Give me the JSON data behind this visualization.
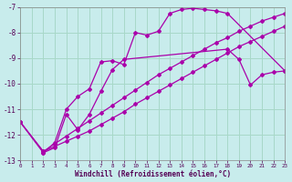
{
  "xlabel": "Windchill (Refroidissement éolien,°C)",
  "background_color": "#c8ecec",
  "grid_color": "#a8d8c8",
  "line_color": "#aa00aa",
  "xmin": 0,
  "xmax": 23,
  "ymin": -13,
  "ymax": -7,
  "line1_x": [
    0,
    2,
    3,
    4,
    5,
    6,
    7,
    8,
    9,
    10,
    11,
    12,
    13,
    14,
    15,
    16,
    17,
    18,
    23
  ],
  "line1_y": [
    -11.5,
    -12.7,
    -12.3,
    -11.0,
    -10.5,
    -10.2,
    -9.15,
    -9.1,
    -9.25,
    -8.0,
    -8.1,
    -7.95,
    -7.25,
    -7.1,
    -7.05,
    -7.1,
    -7.15,
    -7.25,
    -9.5
  ],
  "line2_x": [
    2,
    3,
    4,
    5,
    6,
    7,
    8,
    9,
    18,
    19,
    20,
    21,
    22,
    23
  ],
  "line2_y": [
    -12.7,
    -12.5,
    -11.2,
    -11.8,
    -11.2,
    -10.3,
    -9.45,
    -9.05,
    -8.65,
    -9.05,
    -10.05,
    -9.65,
    -9.55,
    -9.5
  ],
  "line3_x": [
    0,
    2,
    3,
    4,
    5,
    6,
    7,
    8,
    9,
    10,
    11,
    12,
    13,
    14,
    15,
    16,
    17,
    18,
    19,
    20,
    21,
    22,
    23
  ],
  "line3_y": [
    -11.5,
    -12.65,
    -12.35,
    -12.05,
    -11.75,
    -11.45,
    -11.15,
    -10.85,
    -10.55,
    -10.25,
    -9.95,
    -9.65,
    -9.4,
    -9.15,
    -8.9,
    -8.65,
    -8.4,
    -8.2,
    -7.95,
    -7.75,
    -7.55,
    -7.4,
    -7.25
  ],
  "line4_x": [
    0,
    2,
    3,
    4,
    5,
    6,
    7,
    8,
    9,
    10,
    11,
    12,
    13,
    14,
    15,
    16,
    17,
    18,
    19,
    20,
    21,
    22,
    23
  ],
  "line4_y": [
    -11.5,
    -12.65,
    -12.45,
    -12.25,
    -12.05,
    -11.85,
    -11.6,
    -11.35,
    -11.1,
    -10.8,
    -10.55,
    -10.3,
    -10.05,
    -9.8,
    -9.55,
    -9.3,
    -9.05,
    -8.8,
    -8.55,
    -8.35,
    -8.15,
    -7.95,
    -7.75
  ],
  "yticks": [
    -13,
    -12,
    -11,
    -10,
    -9,
    -8,
    -7
  ],
  "xticks": [
    0,
    1,
    2,
    3,
    4,
    5,
    6,
    7,
    8,
    9,
    10,
    11,
    12,
    13,
    14,
    15,
    16,
    17,
    18,
    19,
    20,
    21,
    22,
    23
  ]
}
